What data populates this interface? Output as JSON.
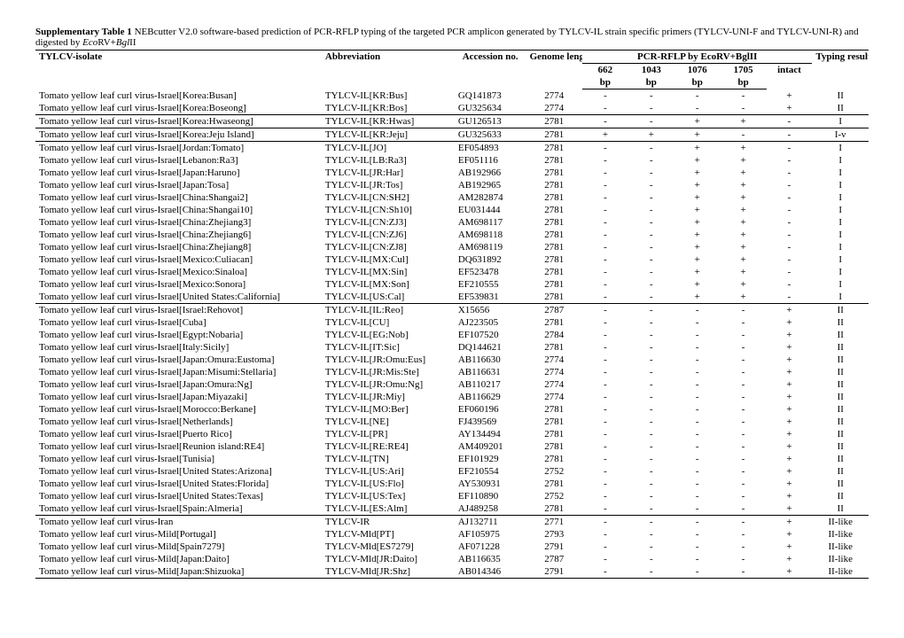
{
  "title_bold": "Supplementary Table 1",
  "title_rest_1": " NEBcutter V2.0 software-based prediction of PCR-RFLP typing of the targeted PCR amplicon generated by TYLCV-IL strain specific primers (TYLCV-UNI-F and TYLCV-UNI-R) and digested by ",
  "title_enz1": "Eco",
  "title_enz1b": "RV+",
  "title_enz2": "Bgl",
  "title_enz2b": "II",
  "headers": {
    "isolate": "TYLCV-isolate",
    "abbr": "Abbreviation",
    "acc": "Accession no.",
    "genome": "Genome length",
    "pcr": "PCR-RFLP by ",
    "pcr_enz1": "Eco",
    "pcr_enz1b": "RV+",
    "pcr_enz2": "Bgl",
    "pcr_enz2b": "II",
    "typing": "Typing results",
    "bp662": "662",
    "bp1043": "1043",
    "bp1076": "1076",
    "bp1705": "1705",
    "bp": "bp",
    "intact": "intact"
  },
  "sections": [
    {
      "rows": [
        {
          "iso": "Tomato yellow leaf curl virus-Israel[Korea:Busan]",
          "abbr": "TYLCV-IL[KR:Bus]",
          "acc": "GQ141873",
          "gen": "2774",
          "b662": "-",
          "b1043": "-",
          "b1076": "-",
          "b1705": "-",
          "int": "+",
          "typ": "II"
        },
        {
          "iso": "Tomato yellow leaf curl virus-Israel[Korea:Boseong]",
          "abbr": "TYLCV-IL[KR:Bos]",
          "acc": "GU325634",
          "gen": "2774",
          "b662": "-",
          "b1043": "-",
          "b1076": "-",
          "b1705": "-",
          "int": "+",
          "typ": "II"
        }
      ]
    },
    {
      "rows": [
        {
          "iso": "Tomato yellow leaf curl virus-Israel[Korea:Hwaseong]",
          "abbr": "TYLCV-IL[KR:Hwas]",
          "acc": "GU126513",
          "gen": "2781",
          "b662": "-",
          "b1043": "-",
          "b1076": "+",
          "b1705": "+",
          "int": "-",
          "typ": "I"
        }
      ]
    },
    {
      "rows": [
        {
          "iso": "Tomato yellow leaf curl virus-Israel[Korea:Jeju Island]",
          "abbr": "TYLCV-IL[KR:Jeju]",
          "acc": "GU325633",
          "gen": "2781",
          "b662": "+",
          "b1043": "+",
          "b1076": "+",
          "b1705": "-",
          "int": "-",
          "typ": "I-v"
        }
      ]
    },
    {
      "rows": [
        {
          "iso": "Tomato yellow leaf curl virus-Israel[Jordan:Tomato]",
          "abbr": "TYLCV-IL[JO]",
          "acc": "EF054893",
          "gen": "2781",
          "b662": "-",
          "b1043": "-",
          "b1076": "+",
          "b1705": "+",
          "int": "-",
          "typ": "I"
        },
        {
          "iso": "Tomato yellow leaf curl virus-Israel[Lebanon:Ra3]",
          "abbr": "TYLCV-IL[LB:Ra3]",
          "acc": "EF051116",
          "gen": "2781",
          "b662": "-",
          "b1043": "-",
          "b1076": "+",
          "b1705": "+",
          "int": "-",
          "typ": "I"
        },
        {
          "iso": "Tomato yellow leaf curl virus-Israel[Japan:Haruno]",
          "abbr": "TYLCV-IL[JR:Har]",
          "acc": "AB192966",
          "gen": "2781",
          "b662": "-",
          "b1043": "-",
          "b1076": "+",
          "b1705": "+",
          "int": "-",
          "typ": "I"
        },
        {
          "iso": "Tomato yellow leaf curl virus-Israel[Japan:Tosa]",
          "abbr": "TYLCV-IL[JR:Tos]",
          "acc": "AB192965",
          "gen": "2781",
          "b662": "-",
          "b1043": "-",
          "b1076": "+",
          "b1705": "+",
          "int": "-",
          "typ": "I"
        },
        {
          "iso": "Tomato yellow leaf curl virus-Israel[China:Shangai2]",
          "abbr": "TYLCV-IL[CN:SH2]",
          "acc": "AM282874",
          "gen": "2781",
          "b662": "-",
          "b1043": "-",
          "b1076": "+",
          "b1705": "+",
          "int": "-",
          "typ": "I"
        },
        {
          "iso": "Tomato yellow leaf curl virus-Israel[China:Shangai10]",
          "abbr": "TYLCV-IL[CN:Sh10]",
          "acc": "EU031444",
          "gen": "2781",
          "b662": "-",
          "b1043": "-",
          "b1076": "+",
          "b1705": "+",
          "int": "-",
          "typ": "I"
        },
        {
          "iso": "Tomato yellow leaf curl virus-Israel[China:Zhejiang3]",
          "abbr": "TYLCV-IL[CN:ZJ3]",
          "acc": "AM698117",
          "gen": "2781",
          "b662": "-",
          "b1043": "-",
          "b1076": "+",
          "b1705": "+",
          "int": "-",
          "typ": "I"
        },
        {
          "iso": "Tomato yellow leaf curl virus-Israel[China:Zhejiang6]",
          "abbr": "TYLCV-IL[CN:ZJ6]",
          "acc": "AM698118",
          "gen": "2781",
          "b662": "-",
          "b1043": "-",
          "b1076": "+",
          "b1705": "+",
          "int": "-",
          "typ": "I"
        },
        {
          "iso": "Tomato yellow leaf curl virus-Israel[China:Zhejiang8]",
          "abbr": "TYLCV-IL[CN:ZJ8]",
          "acc": "AM698119",
          "gen": "2781",
          "b662": "-",
          "b1043": "-",
          "b1076": "+",
          "b1705": "+",
          "int": "-",
          "typ": "I"
        },
        {
          "iso": "Tomato yellow leaf curl virus-Israel[Mexico:Culiacan]",
          "abbr": "TYLCV-IL[MX:Cul]",
          "acc": "DQ631892",
          "gen": "2781",
          "b662": "-",
          "b1043": "-",
          "b1076": "+",
          "b1705": "+",
          "int": "-",
          "typ": "I"
        },
        {
          "iso": "Tomato yellow leaf curl virus-Israel[Mexico:Sinaloa]",
          "abbr": "TYLCV-IL[MX:Sin]",
          "acc": "EF523478",
          "gen": "2781",
          "b662": "-",
          "b1043": "-",
          "b1076": "+",
          "b1705": "+",
          "int": "-",
          "typ": "I"
        },
        {
          "iso": "Tomato yellow leaf curl virus-Israel[Mexico:Sonora]",
          "abbr": "TYLCV-IL[MX:Son]",
          "acc": "EF210555",
          "gen": "2781",
          "b662": "-",
          "b1043": "-",
          "b1076": "+",
          "b1705": "+",
          "int": "-",
          "typ": "I"
        },
        {
          "iso": "Tomato yellow leaf curl virus-Israel[United States:California]",
          "abbr": "TYLCV-IL[US:Cal]",
          "acc": "EF539831",
          "gen": "2781",
          "b662": "-",
          "b1043": "-",
          "b1076": "+",
          "b1705": "+",
          "int": "-",
          "typ": "I"
        }
      ]
    },
    {
      "rows": [
        {
          "iso": "Tomato yellow leaf curl virus-Israel[Israel:Rehovot]",
          "abbr": "TYLCV-IL[IL:Reo]",
          "acc": "X15656",
          "gen": "2787",
          "b662": "-",
          "b1043": "-",
          "b1076": "-",
          "b1705": "-",
          "int": "+",
          "typ": "II"
        },
        {
          "iso": "Tomato yellow leaf curl virus-Israel[Cuba]",
          "abbr": "TYLCV-IL[CU]",
          "acc": "AJ223505",
          "gen": "2781",
          "b662": "-",
          "b1043": "-",
          "b1076": "-",
          "b1705": "-",
          "int": "+",
          "typ": "II"
        },
        {
          "iso": "Tomato yellow leaf curl virus-Israel[Egypt:Nobaria]",
          "abbr": "TYLCV-IL[EG:Nob]",
          "acc": "EF107520",
          "gen": "2784",
          "b662": "-",
          "b1043": "-",
          "b1076": "-",
          "b1705": "-",
          "int": "+",
          "typ": "II"
        },
        {
          "iso": "Tomato yellow leaf curl virus-Israel[Italy:Sicily]",
          "abbr": "TYLCV-IL[IT:Sic]",
          "acc": "DQ144621",
          "gen": "2781",
          "b662": "-",
          "b1043": "-",
          "b1076": "-",
          "b1705": "-",
          "int": "+",
          "typ": "II"
        },
        {
          "iso": "Tomato yellow leaf curl virus-Israel[Japan:Omura:Eustoma]",
          "abbr": "TYLCV-IL[JR:Omu:Eus]",
          "acc": "AB116630",
          "gen": "2774",
          "b662": "-",
          "b1043": "-",
          "b1076": "-",
          "b1705": "-",
          "int": "+",
          "typ": "II"
        },
        {
          "iso": "Tomato yellow leaf curl virus-Israel[Japan:Misumi:Stellaria]",
          "abbr": "TYLCV-IL[JR:Mis:Ste]",
          "acc": "AB116631",
          "gen": "2774",
          "b662": "-",
          "b1043": "-",
          "b1076": "-",
          "b1705": "-",
          "int": "+",
          "typ": "II"
        },
        {
          "iso": "Tomato yellow leaf curl virus-Israel[Japan:Omura:Ng]",
          "abbr": "TYLCV-IL[JR:Omu:Ng]",
          "acc": "AB110217",
          "gen": "2774",
          "b662": "-",
          "b1043": "-",
          "b1076": "-",
          "b1705": "-",
          "int": "+",
          "typ": "II"
        },
        {
          "iso": "Tomato yellow leaf curl virus-Israel[Japan:Miyazaki]",
          "abbr": "TYLCV-IL[JR:Miy]",
          "acc": "AB116629",
          "gen": "2774",
          "b662": "-",
          "b1043": "-",
          "b1076": "-",
          "b1705": "-",
          "int": "+",
          "typ": "II"
        },
        {
          "iso": "Tomato yellow leaf curl virus-Israel[Morocco:Berkane]",
          "abbr": "TYLCV-IL[MO:Ber]",
          "acc": "EF060196",
          "gen": "2781",
          "b662": "-",
          "b1043": "-",
          "b1076": "-",
          "b1705": "-",
          "int": "+",
          "typ": "II"
        },
        {
          "iso": "Tomato yellow leaf curl virus-Israel[Netherlands]",
          "abbr": "TYLCV-IL[NE]",
          "acc": "FJ439569",
          "gen": "2781",
          "b662": "-",
          "b1043": "-",
          "b1076": "-",
          "b1705": "-",
          "int": "+",
          "typ": "II"
        },
        {
          "iso": "Tomato yellow leaf curl virus-Israel[Puerto Rico]",
          "abbr": "TYLCV-IL[PR]",
          "acc": "AY134494",
          "gen": "2781",
          "b662": "-",
          "b1043": "-",
          "b1076": "-",
          "b1705": "-",
          "int": "+",
          "typ": "II"
        },
        {
          "iso": "Tomato yellow leaf curl virus-Israel[Reunion island:RE4]",
          "abbr": "TYLCV-IL[RE:RE4]",
          "acc": "AM409201",
          "gen": "2781",
          "b662": "-",
          "b1043": "-",
          "b1076": "-",
          "b1705": "-",
          "int": "+",
          "typ": "II"
        },
        {
          "iso": "Tomato yellow leaf curl virus-Israel[Tunisia]",
          "abbr": "TYLCV-IL[TN]",
          "acc": "EF101929",
          "gen": "2781",
          "b662": "-",
          "b1043": "-",
          "b1076": "-",
          "b1705": "-",
          "int": "+",
          "typ": "II"
        },
        {
          "iso": "Tomato yellow leaf curl virus-Israel[United States:Arizona]",
          "abbr": "TYLCV-IL[US:Ari]",
          "acc": "EF210554",
          "gen": "2752",
          "b662": "-",
          "b1043": "-",
          "b1076": "-",
          "b1705": "-",
          "int": "+",
          "typ": "II"
        },
        {
          "iso": "Tomato yellow leaf curl virus-Israel[United States:Florida]",
          "abbr": "TYLCV-IL[US:Flo]",
          "acc": "AY530931",
          "gen": "2781",
          "b662": "-",
          "b1043": "-",
          "b1076": "-",
          "b1705": "-",
          "int": "+",
          "typ": "II"
        },
        {
          "iso": "Tomato yellow leaf curl virus-Israel[United States:Texas]",
          "abbr": "TYLCV-IL[US:Tex]",
          "acc": "EF110890",
          "gen": "2752",
          "b662": "-",
          "b1043": "-",
          "b1076": "-",
          "b1705": "-",
          "int": "+",
          "typ": "II"
        },
        {
          "iso": "Tomato yellow leaf curl virus-Israel[Spain:Almeria]",
          "abbr": "TYLCV-IL[ES:Alm]",
          "acc": "AJ489258",
          "gen": "2781",
          "b662": "-",
          "b1043": "-",
          "b1076": "-",
          "b1705": "-",
          "int": "+",
          "typ": "II"
        }
      ]
    },
    {
      "rows": [
        {
          "iso": "Tomato yellow leaf curl virus-Iran",
          "abbr": "TYLCV-IR",
          "acc": "AJ132711",
          "gen": "2771",
          "b662": "-",
          "b1043": "-",
          "b1076": "-",
          "b1705": "-",
          "int": "+",
          "typ": "II-like"
        },
        {
          "iso": "Tomato yellow leaf curl virus-Mild[Portugal]",
          "abbr": "TYLCV-Mld[PT]",
          "acc": "AF105975",
          "gen": "2793",
          "b662": "-",
          "b1043": "-",
          "b1076": "-",
          "b1705": "-",
          "int": "+",
          "typ": "II-like"
        },
        {
          "iso": "Tomato yellow leaf curl virus-Mild[Spain7279]",
          "abbr": "TYLCV-Mld[ES7279]",
          "acc": "AF071228",
          "gen": "2791",
          "b662": "-",
          "b1043": "-",
          "b1076": "-",
          "b1705": "-",
          "int": "+",
          "typ": "II-like"
        },
        {
          "iso": "Tomato yellow leaf curl virus-Mild[Japan:Daito]",
          "abbr": "TYLCV-Mld[JR:Daito]",
          "acc": "AB116635",
          "gen": "2787",
          "b662": "-",
          "b1043": "-",
          "b1076": "-",
          "b1705": "-",
          "int": "+",
          "typ": "II-like"
        },
        {
          "iso": "Tomato yellow leaf curl virus-Mild[Japan:Shizuoka]",
          "abbr": "TYLCV-Mld[JR:Shz]",
          "acc": "AB014346",
          "gen": "2791",
          "b662": "-",
          "b1043": "-",
          "b1076": "-",
          "b1705": "-",
          "int": "+",
          "typ": "II-like"
        }
      ]
    }
  ]
}
